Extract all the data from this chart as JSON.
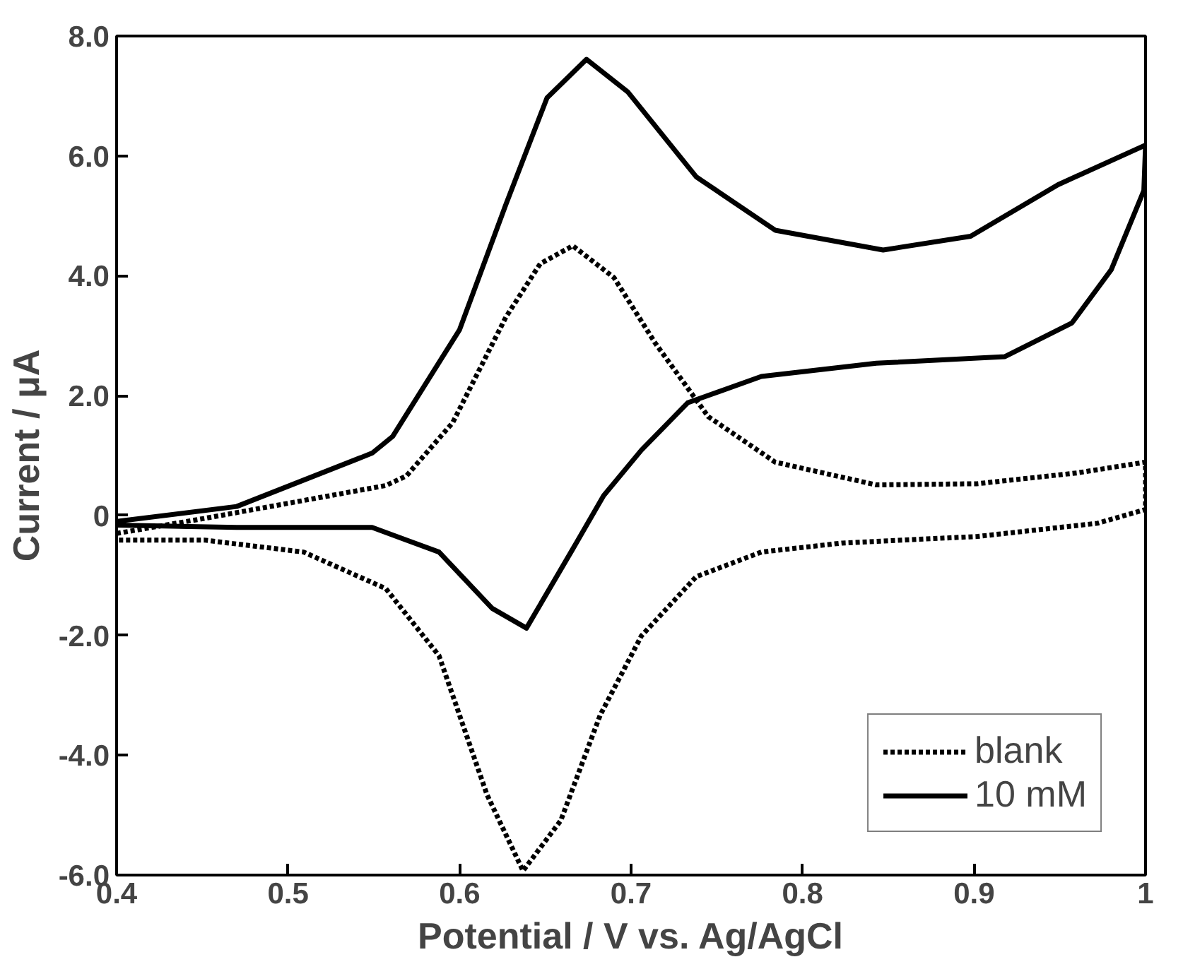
{
  "chart_data": {
    "type": "line",
    "xlabel": "Potential / V vs. Ag/AgCl",
    "ylabel": "Current / μA",
    "xlim": [
      0.4,
      1.0
    ],
    "ylim": [
      -6,
      8
    ],
    "xticks": [
      0.4,
      0.5,
      0.6,
      0.7,
      0.8,
      0.9,
      {
        "value": 1.0,
        "label": "1"
      }
    ],
    "yticks": [
      {
        "value": -6,
        "label": "-6.0"
      },
      {
        "value": -4,
        "label": "-4.0"
      },
      {
        "value": -2,
        "label": "-2.0"
      },
      0,
      {
        "value": 2,
        "label": "2.0"
      },
      {
        "value": 4,
        "label": "4.0"
      },
      {
        "value": 6,
        "label": "6.0"
      },
      {
        "value": 8,
        "label": "8.0"
      }
    ],
    "grid": false,
    "legend": "bottom right",
    "marker": "none",
    "series": [
      {
        "name": "blank",
        "color": "#000000",
        "line_style": "dotted",
        "x": [
          0.4,
          0.451,
          0.509,
          0.557,
          0.569,
          0.596,
          0.627,
          0.647,
          0.666,
          0.69,
          0.714,
          0.745,
          0.784,
          0.843,
          0.902,
          0.96,
          1.0,
          1.0,
          0.972,
          0.902,
          0.823,
          0.776,
          0.738,
          0.706,
          0.682,
          0.659,
          0.637,
          0.616,
          0.588,
          0.557,
          0.509,
          0.451,
          0.4
        ],
        "values": [
          -0.3,
          -0.05,
          0.25,
          0.5,
          0.66,
          1.55,
          3.31,
          4.2,
          4.5,
          3.97,
          2.88,
          1.65,
          0.89,
          0.51,
          0.53,
          0.71,
          0.89,
          0.1,
          -0.13,
          -0.35,
          -0.46,
          -0.61,
          -1.02,
          -2.01,
          -3.33,
          -5.09,
          -5.93,
          -4.66,
          -2.34,
          -1.22,
          -0.61,
          -0.41,
          -0.41
        ]
      },
      {
        "name": "10 mM",
        "color": "#000000",
        "line_style": "solid",
        "x": [
          0.4,
          0.47,
          0.549,
          0.561,
          0.6,
          0.627,
          0.651,
          0.674,
          0.698,
          0.738,
          0.784,
          0.847,
          0.898,
          0.949,
          1.0,
          0.999,
          0.98,
          0.957,
          0.918,
          0.843,
          0.776,
          0.733,
          0.706,
          0.684,
          0.666,
          0.639,
          0.619,
          0.588,
          0.549,
          0.47,
          0.4
        ],
        "values": [
          -0.1,
          0.15,
          1.04,
          1.32,
          3.1,
          5.19,
          6.97,
          7.61,
          7.07,
          5.65,
          4.76,
          4.43,
          4.66,
          5.52,
          6.18,
          5.42,
          4.1,
          3.21,
          2.65,
          2.54,
          2.32,
          1.88,
          1.09,
          0.33,
          -0.56,
          -1.88,
          -1.55,
          -0.61,
          -0.2,
          -0.2,
          -0.16
        ]
      }
    ]
  }
}
